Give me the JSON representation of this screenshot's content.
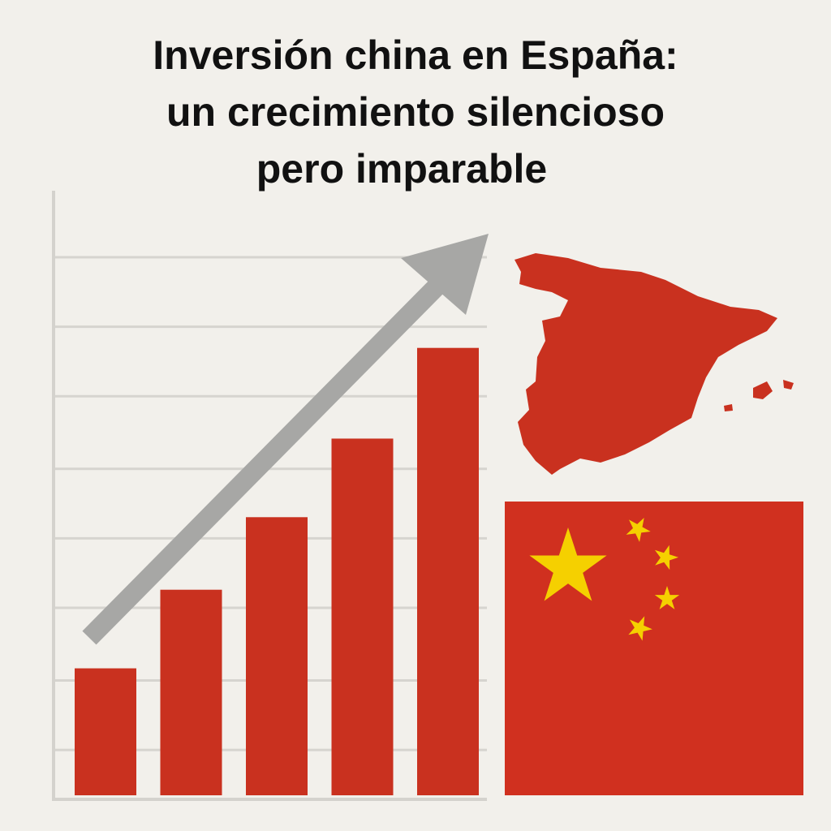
{
  "chart_data": {
    "type": "bar",
    "title": [
      "Inversión china en España:",
      "un crecimiento silencioso",
      "pero imparable"
    ],
    "categories": [
      null,
      null,
      null,
      null,
      null
    ],
    "values": [
      21,
      34,
      46,
      59,
      74
    ],
    "color": "#c9311f",
    "ylim": [
      0,
      100
    ],
    "yticks": [
      7.5,
      19,
      31,
      42.5,
      54,
      66,
      77.5,
      89
    ],
    "grid": true
  }
}
